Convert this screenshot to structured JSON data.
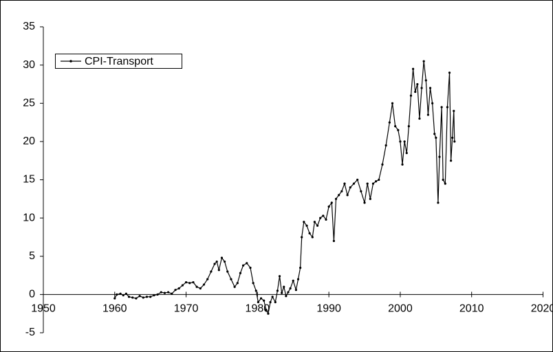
{
  "chart_data": {
    "type": "line",
    "x": [
      1960.0,
      1960.3,
      1960.8,
      1961.2,
      1961.6,
      1962.0,
      1962.5,
      1963.0,
      1963.5,
      1964.0,
      1964.5,
      1965.0,
      1965.5,
      1966.0,
      1966.5,
      1967.0,
      1967.5,
      1968.0,
      1968.5,
      1969.0,
      1969.5,
      1970.0,
      1970.5,
      1971.0,
      1971.5,
      1972.0,
      1972.5,
      1973.0,
      1973.5,
      1974.0,
      1974.3,
      1974.6,
      1975.0,
      1975.4,
      1975.8,
      1976.3,
      1976.8,
      1977.2,
      1977.6,
      1978.0,
      1978.5,
      1979.0,
      1979.4,
      1979.8,
      1980.1,
      1980.5,
      1980.9,
      1981.2,
      1981.5,
      1981.8,
      1982.1,
      1982.5,
      1982.8,
      1983.1,
      1983.4,
      1983.7,
      1984.0,
      1984.3,
      1984.6,
      1985.0,
      1985.4,
      1985.7,
      1986.0,
      1986.2,
      1986.5,
      1986.9,
      1987.3,
      1987.7,
      1988.0,
      1988.4,
      1988.8,
      1989.2,
      1989.6,
      1990.0,
      1990.4,
      1990.7,
      1991.0,
      1991.4,
      1991.8,
      1992.2,
      1992.6,
      1993.0,
      1993.5,
      1994.0,
      1994.5,
      1995.0,
      1995.4,
      1995.8,
      1996.2,
      1996.6,
      1997.0,
      1997.5,
      1998.0,
      1998.5,
      1998.9,
      1999.3,
      1999.7,
      2000.0,
      2000.3,
      2000.6,
      2000.9,
      2001.2,
      2001.5,
      2001.8,
      2002.1,
      2002.4,
      2002.7,
      2003.0,
      2003.3,
      2003.6,
      2003.9,
      2004.2,
      2004.5,
      2004.8,
      2005.0,
      2005.3,
      2005.5,
      2005.8,
      2006.0,
      2006.3,
      2006.6,
      2006.9,
      2007.1,
      2007.3,
      2007.5,
      2007.6
    ],
    "series": [
      {
        "name": "CPI-Transport",
        "color": "#000000",
        "values": [
          -0.5,
          0,
          0.1,
          -0.1,
          0.1,
          -0.3,
          -0.4,
          -0.5,
          -0.2,
          -0.4,
          -0.3,
          -0.3,
          -0.1,
          0,
          0.3,
          0.2,
          0.3,
          0.1,
          0.6,
          0.8,
          1.2,
          1.6,
          1.5,
          1.6,
          1.0,
          0.8,
          1.3,
          2.0,
          3.0,
          4.0,
          4.3,
          3.2,
          4.8,
          4.3,
          3.0,
          2.0,
          1.0,
          1.5,
          2.8,
          3.8,
          4.1,
          3.5,
          1.5,
          0.5,
          -1.0,
          -0.5,
          -0.8,
          -2.0,
          -2.5,
          -1.0,
          -0.3,
          -1.0,
          0.5,
          2.4,
          0.2,
          1.0,
          -0.2,
          0.3,
          0.8,
          1.8,
          0.6,
          2.0,
          3.5,
          7.5,
          9.5,
          9.0,
          8.0,
          7.5,
          9.5,
          9.0,
          10.0,
          10.3,
          9.8,
          11.5,
          12.0,
          7.0,
          12.5,
          13.0,
          13.5,
          14.5,
          13.0,
          14.0,
          14.5,
          15.0,
          13.5,
          12.0,
          14.5,
          12.5,
          14.5,
          14.8,
          15.0,
          17.0,
          19.5,
          22.5,
          25.0,
          22.0,
          21.5,
          20.0,
          17.0,
          20.0,
          18.5,
          22.0,
          26.0,
          29.5,
          26.5,
          27.5,
          23.0,
          27.0,
          30.5,
          28.0,
          23.5,
          27.0,
          25.0,
          21.0,
          20.5,
          12.0,
          18.0,
          24.5,
          15.0,
          14.5,
          24.5,
          29.0,
          17.5,
          20.5,
          24.0,
          20.0
        ]
      }
    ],
    "xlim": [
      1950,
      2020
    ],
    "xticks": [
      1950,
      1960,
      1970,
      1980,
      1990,
      2000,
      2010,
      2020
    ],
    "ylim": [
      -5,
      35
    ],
    "yticks": [
      -5,
      0,
      5,
      10,
      15,
      20,
      25,
      30,
      35
    ],
    "legend": "upper left",
    "grid": false
  }
}
